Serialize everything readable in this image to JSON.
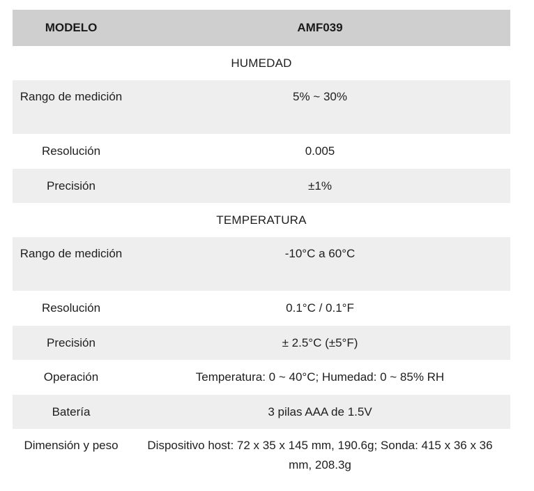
{
  "header": {
    "model_label": "MODELO",
    "model_value": "AMF039"
  },
  "sections": [
    {
      "title": "HUMEDAD",
      "rows": [
        {
          "label": "Rango de medición",
          "value": "5% ~ 30%"
        },
        {
          "label": "Resolución",
          "value": "0.005"
        },
        {
          "label": "Precisión",
          "value": "±1%"
        }
      ]
    },
    {
      "title": "TEMPERATURA",
      "rows": [
        {
          "label": "Rango de medición",
          "value": "-10°C a 60°C"
        },
        {
          "label": "Resolución",
          "value": "0.1°C / 0.1°F"
        },
        {
          "label": "Precisión",
          "value": "± 2.5°C (±5°F)"
        }
      ]
    }
  ],
  "general_rows": [
    {
      "label": "Operación",
      "value": "Temperatura: 0 ~ 40°C; Humedad: 0 ~ 85% RH"
    },
    {
      "label": "Batería",
      "value": "3 pilas AAA de 1.5V"
    },
    {
      "label": "Dimensión y peso",
      "value": "Dispositivo host: 72 x 35 x 145 mm, 190.6g; Sonda: 415 x 36 x 36 mm, 208.3g"
    }
  ]
}
